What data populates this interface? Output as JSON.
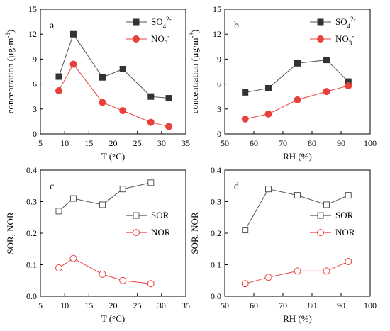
{
  "colors": {
    "gray": "#555555",
    "red": "#e8413c",
    "axis": "#000000"
  },
  "chart_data": [
    {
      "type": "line",
      "panel_label": "a",
      "xlabel": "T (°C)",
      "ylabel": "concentration (µg·m⁻³)",
      "xlim": [
        5,
        35
      ],
      "ylim": [
        0,
        15
      ],
      "xticks": [
        "5",
        "10",
        "15",
        "20",
        "25",
        "30",
        "35"
      ],
      "yticks": [
        "0",
        "3",
        "6",
        "9",
        "12",
        "15"
      ],
      "legend_position": "top-right",
      "series": [
        {
          "name": "SO₄²⁻",
          "marker": "square-filled",
          "color": "gray",
          "x": [
            8.8,
            11.8,
            17.8,
            22.0,
            27.8,
            31.5
          ],
          "y": [
            6.9,
            12.0,
            6.8,
            7.8,
            4.5,
            4.3
          ]
        },
        {
          "name": "NO₃⁻",
          "marker": "circle-filled",
          "color": "red",
          "x": [
            8.8,
            11.8,
            17.8,
            22.0,
            27.8,
            31.5
          ],
          "y": [
            5.2,
            8.4,
            3.8,
            2.8,
            1.4,
            0.9
          ]
        }
      ]
    },
    {
      "type": "line",
      "panel_label": "b",
      "xlabel": "RH (%)",
      "ylabel": "concentration (µg·m⁻³)",
      "xlim": [
        50,
        100
      ],
      "ylim": [
        0,
        15
      ],
      "xticks": [
        "50",
        "60",
        "70",
        "80",
        "90",
        "100"
      ],
      "yticks": [
        "0",
        "3",
        "6",
        "9",
        "12",
        "15"
      ],
      "legend_position": "top-right",
      "series": [
        {
          "name": "SO₄²⁻",
          "marker": "square-filled",
          "color": "gray",
          "x": [
            57,
            65,
            75,
            85,
            92.5
          ],
          "y": [
            5.0,
            5.5,
            8.5,
            8.9,
            6.3
          ]
        },
        {
          "name": "NO₃⁻",
          "marker": "circle-filled",
          "color": "red",
          "x": [
            57,
            65,
            75,
            85,
            92.5
          ],
          "y": [
            1.8,
            2.4,
            4.1,
            5.1,
            5.8
          ]
        }
      ]
    },
    {
      "type": "line",
      "panel_label": "c",
      "xlabel": "T (°C)",
      "ylabel": "SOR, NOR",
      "xlim": [
        5,
        35
      ],
      "ylim": [
        0,
        0.4
      ],
      "xticks": [
        "5",
        "10",
        "15",
        "20",
        "25",
        "30",
        "35"
      ],
      "yticks": [
        "0.0",
        "0.1",
        "0.2",
        "0.3",
        "0.4"
      ],
      "legend_position": "middle-right",
      "series": [
        {
          "name": "SOR",
          "marker": "square-open",
          "color": "gray",
          "x": [
            8.8,
            11.8,
            17.8,
            22.0,
            27.8
          ],
          "y": [
            0.27,
            0.31,
            0.29,
            0.34,
            0.36
          ]
        },
        {
          "name": "NOR",
          "marker": "circle-open",
          "color": "red",
          "x": [
            8.8,
            11.8,
            17.8,
            22.0,
            27.8
          ],
          "y": [
            0.09,
            0.12,
            0.07,
            0.05,
            0.04
          ]
        }
      ]
    },
    {
      "type": "line",
      "panel_label": "d",
      "xlabel": "RH (%)",
      "ylabel": "SOR, NOR",
      "xlim": [
        50,
        100
      ],
      "ylim": [
        0,
        0.4
      ],
      "xticks": [
        "50",
        "60",
        "70",
        "80",
        "90",
        "100"
      ],
      "yticks": [
        "0.0",
        "0.1",
        "0.2",
        "0.3",
        "0.4"
      ],
      "legend_position": "middle-right",
      "series": [
        {
          "name": "SOR",
          "marker": "square-open",
          "color": "gray",
          "x": [
            57,
            65,
            75,
            85,
            92.5
          ],
          "y": [
            0.21,
            0.34,
            0.32,
            0.29,
            0.32
          ]
        },
        {
          "name": "NOR",
          "marker": "circle-open",
          "color": "red",
          "x": [
            57,
            65,
            75,
            85,
            92.5
          ],
          "y": [
            0.04,
            0.06,
            0.08,
            0.08,
            0.11
          ]
        }
      ]
    }
  ]
}
